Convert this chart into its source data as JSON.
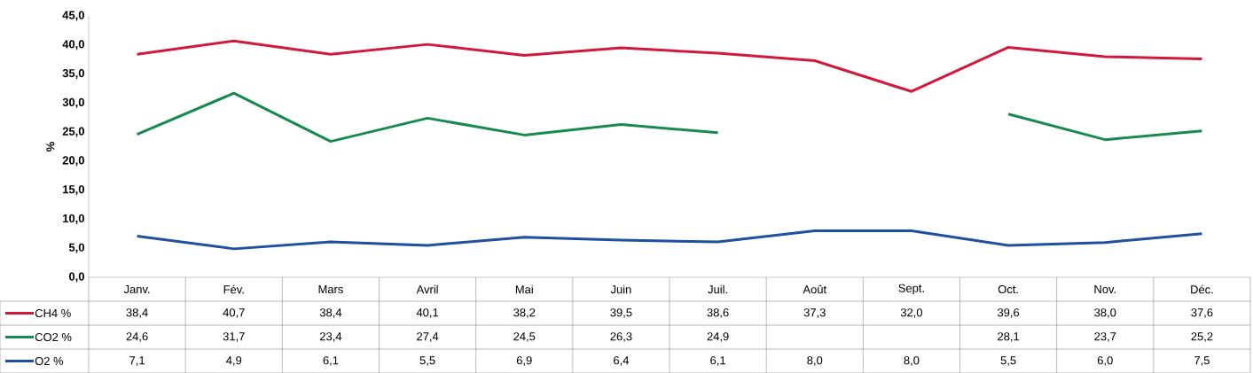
{
  "chart_data": {
    "type": "line",
    "ylabel": "%",
    "categories": [
      "Janv.",
      "Fév.",
      "Mars",
      "Avril",
      "Mai",
      "Juin",
      "Juil.",
      "Août",
      "Sept.",
      "Oct.",
      "Nov.",
      "Déc."
    ],
    "ylim": [
      0,
      45
    ],
    "yticks": [
      {
        "value": 0,
        "label": "0,0"
      },
      {
        "value": 5,
        "label": "5,0"
      },
      {
        "value": 10,
        "label": "10,0"
      },
      {
        "value": 15,
        "label": "15,0"
      },
      {
        "value": 20,
        "label": "20,0"
      },
      {
        "value": 25,
        "label": "25,0"
      },
      {
        "value": 30,
        "label": "30,0"
      },
      {
        "value": 35,
        "label": "35,0"
      },
      {
        "value": 40,
        "label": "40,0"
      },
      {
        "value": 45,
        "label": "45,0"
      }
    ],
    "legend": "bottom",
    "series": [
      {
        "name": "CH4 %",
        "color": "#d2183c",
        "values": [
          38.4,
          40.7,
          38.4,
          40.1,
          38.2,
          39.5,
          38.6,
          37.3,
          32.0,
          39.6,
          38.0,
          37.6
        ],
        "value_labels": [
          "38,4",
          "40,7",
          "38,4",
          "40,1",
          "38,2",
          "39,5",
          "38,6",
          "37,3",
          "32,0",
          "39,6",
          "38,0",
          "37,6"
        ]
      },
      {
        "name": "CO2 %",
        "color": "#178a50",
        "values": [
          24.6,
          31.7,
          23.4,
          27.4,
          24.5,
          26.3,
          24.9,
          null,
          null,
          28.1,
          23.7,
          25.2
        ],
        "value_labels": [
          "24,6",
          "31,7",
          "23,4",
          "27,4",
          "24,5",
          "26,3",
          "24,9",
          null,
          null,
          "28,1",
          "23,7",
          "25,2"
        ]
      },
      {
        "name": "O2 %",
        "color": "#1f4fa0",
        "values": [
          7.1,
          4.9,
          6.1,
          5.5,
          6.9,
          6.4,
          6.1,
          8.0,
          8.0,
          5.5,
          6.0,
          7.5
        ],
        "value_labels": [
          "7,1",
          "4,9",
          "6,1",
          "5,5",
          "6,9",
          "6,4",
          "6,1",
          "8,0",
          "8,0",
          "5,5",
          "6,0",
          "7,5"
        ]
      }
    ]
  }
}
